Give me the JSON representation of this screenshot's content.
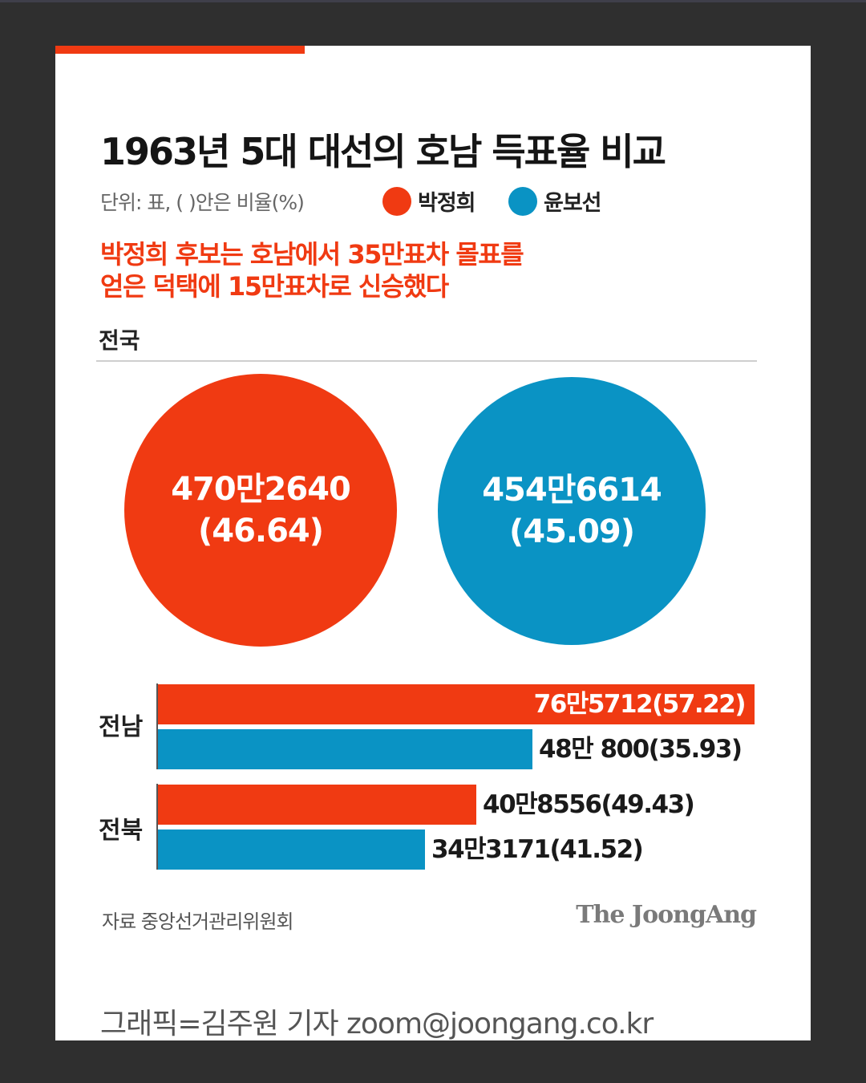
{
  "title": "1963년 5대 대선의 호남 득표율 비교",
  "unit_note": "단위: 표, ( )안은 비율(%)",
  "legend": [
    {
      "name": "박정희",
      "color": "#f03a12"
    },
    {
      "name": "윤보선",
      "color": "#0a93c4"
    }
  ],
  "subtitle_lines": [
    "박정희 후보는 호남에서 35만표차 몰표를",
    "얻은 덕택에 15만표차로 신승했다"
  ],
  "national": {
    "label": "전국",
    "park": {
      "votes_label": "470만2640",
      "pct_label": "(46.64)"
    },
    "yun": {
      "votes_label": "454만6614",
      "pct_label": "(45.09)"
    }
  },
  "chart_data": {
    "type": "bar",
    "orientation": "horizontal",
    "title": "1963년 5대 대선의 호남 득표율 비교",
    "unit": "단위: 표, ( )안은 비율(%)",
    "national_label": "전국",
    "national": [
      {
        "candidate": "박정희",
        "votes": 4702640,
        "percent": 46.64
      },
      {
        "candidate": "윤보선",
        "votes": 4546614,
        "percent": 45.09
      }
    ],
    "categories": [
      "전남",
      "전북"
    ],
    "series": [
      {
        "name": "박정희",
        "color": "#f03a12",
        "values": [
          765712,
          408556
        ],
        "percent": [
          57.22,
          49.43
        ],
        "labels": [
          "76만5712(57.22)",
          "40만8556(49.43)"
        ]
      },
      {
        "name": "윤보선",
        "color": "#0a93c4",
        "values": [
          480800,
          343171
        ],
        "percent": [
          35.93,
          41.52
        ],
        "labels": [
          "48만 800(35.93)",
          "34만3171(41.52)"
        ]
      }
    ]
  },
  "source": "자료 중앙선거관리위원회",
  "brand": "The JoongAng",
  "credit": "그래픽=김주원 기자 zoom@joongang.co.kr"
}
